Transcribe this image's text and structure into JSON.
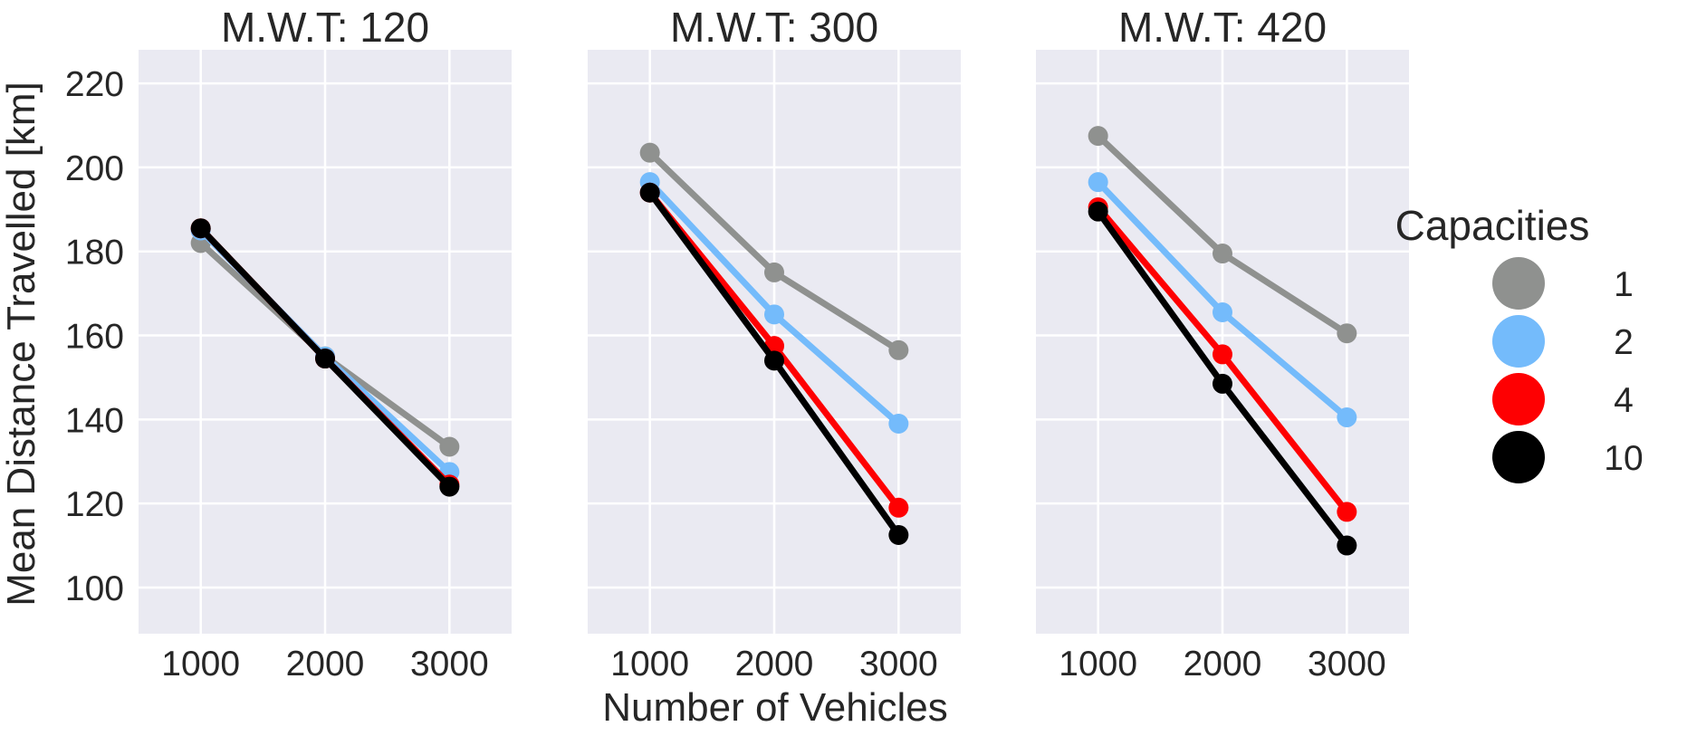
{
  "chart_data": {
    "type": "line",
    "ylabel": "Mean Distance Travelled [km]",
    "xlabel": "Number of Vehicles",
    "ylim": [
      89,
      228
    ],
    "xlim": [
      500,
      3500
    ],
    "yticks": [
      100,
      120,
      140,
      160,
      180,
      200,
      220
    ],
    "xticks": [
      1000,
      2000,
      3000
    ],
    "grid": true,
    "legend": {
      "title": "Capacities",
      "placement": "right",
      "entries": [
        {
          "label": "1",
          "color": "#8f918f"
        },
        {
          "label": "2",
          "color": "#74bbfb"
        },
        {
          "label": "4",
          "color": "#fe0002"
        },
        {
          "label": "10",
          "color": "#000000"
        }
      ]
    },
    "panels": [
      {
        "title": "M.W.T: 120",
        "series": [
          {
            "name": "1",
            "color": "#8f918f",
            "x": [
              1000,
              2000,
              3000
            ],
            "y": [
              182,
              155,
              133.5
            ]
          },
          {
            "name": "2",
            "color": "#74bbfb",
            "x": [
              1000,
              2000,
              3000
            ],
            "y": [
              185,
              155,
              127.5
            ]
          },
          {
            "name": "4",
            "color": "#fe0002",
            "x": [
              1000,
              2000,
              3000
            ],
            "y": [
              185.5,
              154.5,
              124.5
            ]
          },
          {
            "name": "10",
            "color": "#000000",
            "x": [
              1000,
              2000,
              3000
            ],
            "y": [
              185.5,
              154.5,
              124
            ]
          }
        ]
      },
      {
        "title": "M.W.T: 300",
        "series": [
          {
            "name": "1",
            "color": "#8f918f",
            "x": [
              1000,
              2000,
              3000
            ],
            "y": [
              203.5,
              175,
              156.5
            ]
          },
          {
            "name": "2",
            "color": "#74bbfb",
            "x": [
              1000,
              2000,
              3000
            ],
            "y": [
              196.5,
              165,
              139
            ]
          },
          {
            "name": "4",
            "color": "#fe0002",
            "x": [
              1000,
              2000,
              3000
            ],
            "y": [
              194,
              157.5,
              119
            ]
          },
          {
            "name": "10",
            "color": "#000000",
            "x": [
              1000,
              2000,
              3000
            ],
            "y": [
              194,
              154,
              112.5
            ]
          }
        ]
      },
      {
        "title": "M.W.T: 420",
        "series": [
          {
            "name": "1",
            "color": "#8f918f",
            "x": [
              1000,
              2000,
              3000
            ],
            "y": [
              207.5,
              179.5,
              160.5
            ]
          },
          {
            "name": "2",
            "color": "#74bbfb",
            "x": [
              1000,
              2000,
              3000
            ],
            "y": [
              196.5,
              165.5,
              140.5
            ]
          },
          {
            "name": "4",
            "color": "#fe0002",
            "x": [
              1000,
              2000,
              3000
            ],
            "y": [
              190.5,
              155.5,
              118
            ]
          },
          {
            "name": "10",
            "color": "#000000",
            "x": [
              1000,
              2000,
              3000
            ],
            "y": [
              189.5,
              148.5,
              110
            ]
          }
        ]
      }
    ]
  }
}
